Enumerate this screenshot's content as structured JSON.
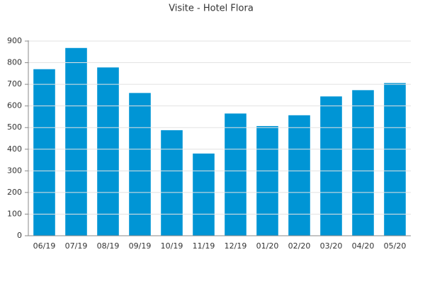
{
  "chart_data": {
    "type": "bar",
    "title": "Visite - Hotel Flora",
    "categories": [
      "06/19",
      "07/19",
      "08/19",
      "09/19",
      "10/19",
      "11/19",
      "12/19",
      "01/20",
      "02/20",
      "03/20",
      "04/20",
      "05/20"
    ],
    "values": [
      770,
      868,
      778,
      660,
      488,
      380,
      565,
      507,
      557,
      644,
      673,
      706
    ],
    "color": "#0095d5",
    "ylim": [
      0,
      900
    ],
    "yticks": [
      0,
      100,
      200,
      300,
      400,
      500,
      600,
      700,
      800,
      900
    ],
    "grid": true
  }
}
